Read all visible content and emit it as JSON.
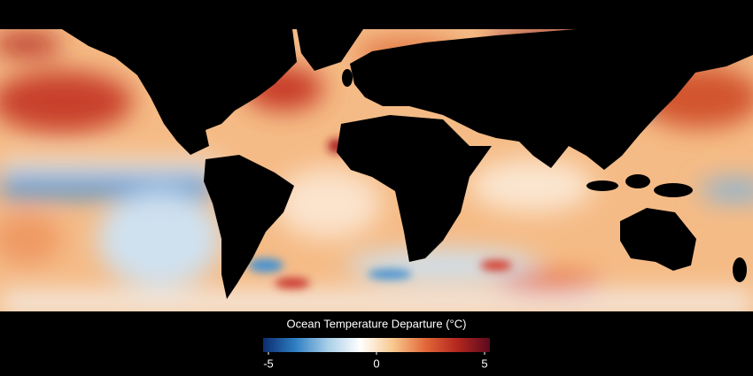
{
  "colorbar": {
    "title": "Ocean Temperature Departure (°C)",
    "lim": [
      -5,
      5
    ],
    "ticks": [
      -5,
      0,
      5
    ],
    "colors": [
      "#0b2c6e",
      "#2f7fc4",
      "#a9cfe8",
      "#ffffff",
      "#f7c98f",
      "#e3683a",
      "#b3261e",
      "#5a0a1e"
    ]
  }
}
